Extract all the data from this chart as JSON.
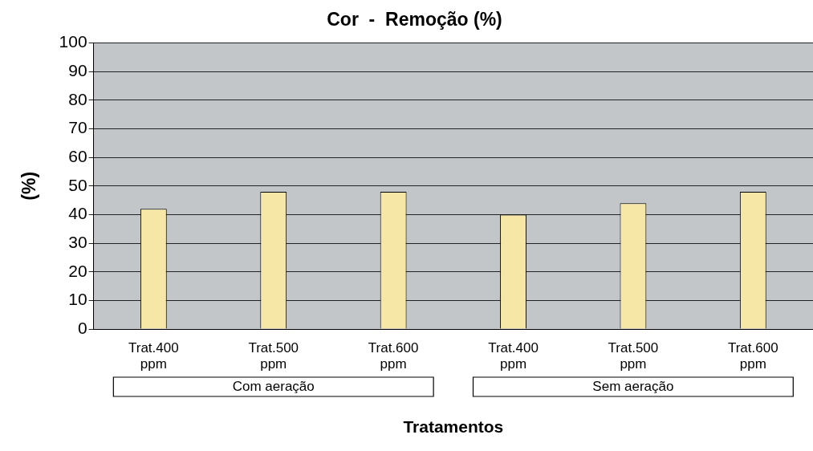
{
  "chart_data": {
    "type": "bar",
    "title": "Cor  -  Remoção (%)",
    "xlabel": "Tratamentos",
    "ylabel": "(%)",
    "categories": [
      "Trat.400 ppm",
      "Trat.500 ppm",
      "Trat.600 ppm",
      "Trat.400 ppm",
      "Trat.500 ppm",
      "Trat.600 ppm"
    ],
    "values": [
      42,
      48,
      48,
      40,
      44,
      48
    ],
    "color": "#f7e7a6",
    "ylim": [
      0,
      100
    ],
    "yticks": [
      0,
      10,
      20,
      30,
      40,
      50,
      60,
      70,
      80,
      90,
      100
    ],
    "grid": "y",
    "annotations": [
      "Com aeração",
      "Sem aeração"
    ]
  }
}
